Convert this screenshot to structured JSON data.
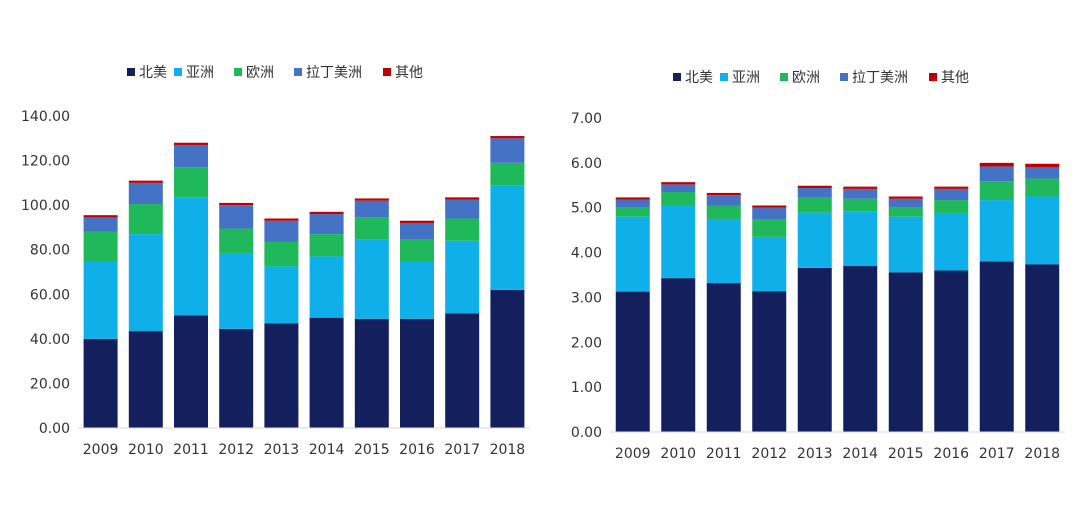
{
  "chart_data": [
    {
      "type": "bar",
      "stacked": true,
      "categories": [
        "2009",
        "2010",
        "2011",
        "2012",
        "2013",
        "2014",
        "2015",
        "2016",
        "2017",
        "2018"
      ],
      "ylim": [
        0,
        140
      ],
      "yticks": [
        "0.00",
        "20.00",
        "40.00",
        "60.00",
        "80.00",
        "100.00",
        "120.00",
        "140.00"
      ],
      "grid": false,
      "legend_position": "top",
      "series": [
        {
          "name": "北美",
          "color": "#14205e",
          "values": [
            40,
            43.5,
            50.5,
            44.5,
            47,
            49.5,
            49,
            49,
            51.5,
            62
          ]
        },
        {
          "name": "亚洲",
          "color": "#0fb0ea",
          "values": [
            34.5,
            43.5,
            53,
            34,
            25.5,
            27.5,
            35.5,
            25.5,
            32.5,
            47
          ]
        },
        {
          "name": "欧洲",
          "color": "#1fb85a",
          "values": [
            13.5,
            13.5,
            13.5,
            11,
            11,
            10,
            10,
            10,
            10,
            10
          ]
        },
        {
          "name": "拉丁美洲",
          "color": "#4472c4",
          "values": [
            6.5,
            9.5,
            10,
            10.5,
            9.5,
            9,
            7.5,
            7.5,
            8.5,
            11
          ]
        },
        {
          "name": "其他",
          "color": "#c00000",
          "values": [
            1,
            1,
            1,
            1,
            1,
            1,
            1,
            1,
            1,
            1
          ]
        }
      ]
    },
    {
      "type": "bar",
      "stacked": true,
      "categories": [
        "2009",
        "2010",
        "2011",
        "2012",
        "2013",
        "2014",
        "2015",
        "2016",
        "2017",
        "2018"
      ],
      "ylim": [
        0,
        7
      ],
      "yticks": [
        "0.00",
        "1.00",
        "2.00",
        "3.00",
        "4.00",
        "5.00",
        "6.00",
        "7.00"
      ],
      "grid": false,
      "legend_position": "top",
      "series": [
        {
          "name": "北美",
          "color": "#14205e",
          "values": [
            3.13,
            3.43,
            3.32,
            3.14,
            3.66,
            3.7,
            3.56,
            3.6,
            3.8,
            3.74
          ]
        },
        {
          "name": "亚洲",
          "color": "#0fb0ea",
          "values": [
            1.67,
            1.62,
            1.43,
            1.21,
            1.23,
            1.22,
            1.24,
            1.27,
            1.37,
            1.51
          ]
        },
        {
          "name": "欧洲",
          "color": "#1fb85a",
          "values": [
            0.2,
            0.3,
            0.3,
            0.38,
            0.33,
            0.28,
            0.2,
            0.3,
            0.42,
            0.4
          ]
        },
        {
          "name": "拉丁美洲",
          "color": "#4472c4",
          "values": [
            0.18,
            0.17,
            0.23,
            0.27,
            0.22,
            0.22,
            0.2,
            0.25,
            0.33,
            0.25
          ]
        },
        {
          "name": "其他",
          "color": "#c00000",
          "values": [
            0.05,
            0.05,
            0.05,
            0.05,
            0.05,
            0.05,
            0.05,
            0.05,
            0.08,
            0.08
          ]
        }
      ]
    }
  ]
}
